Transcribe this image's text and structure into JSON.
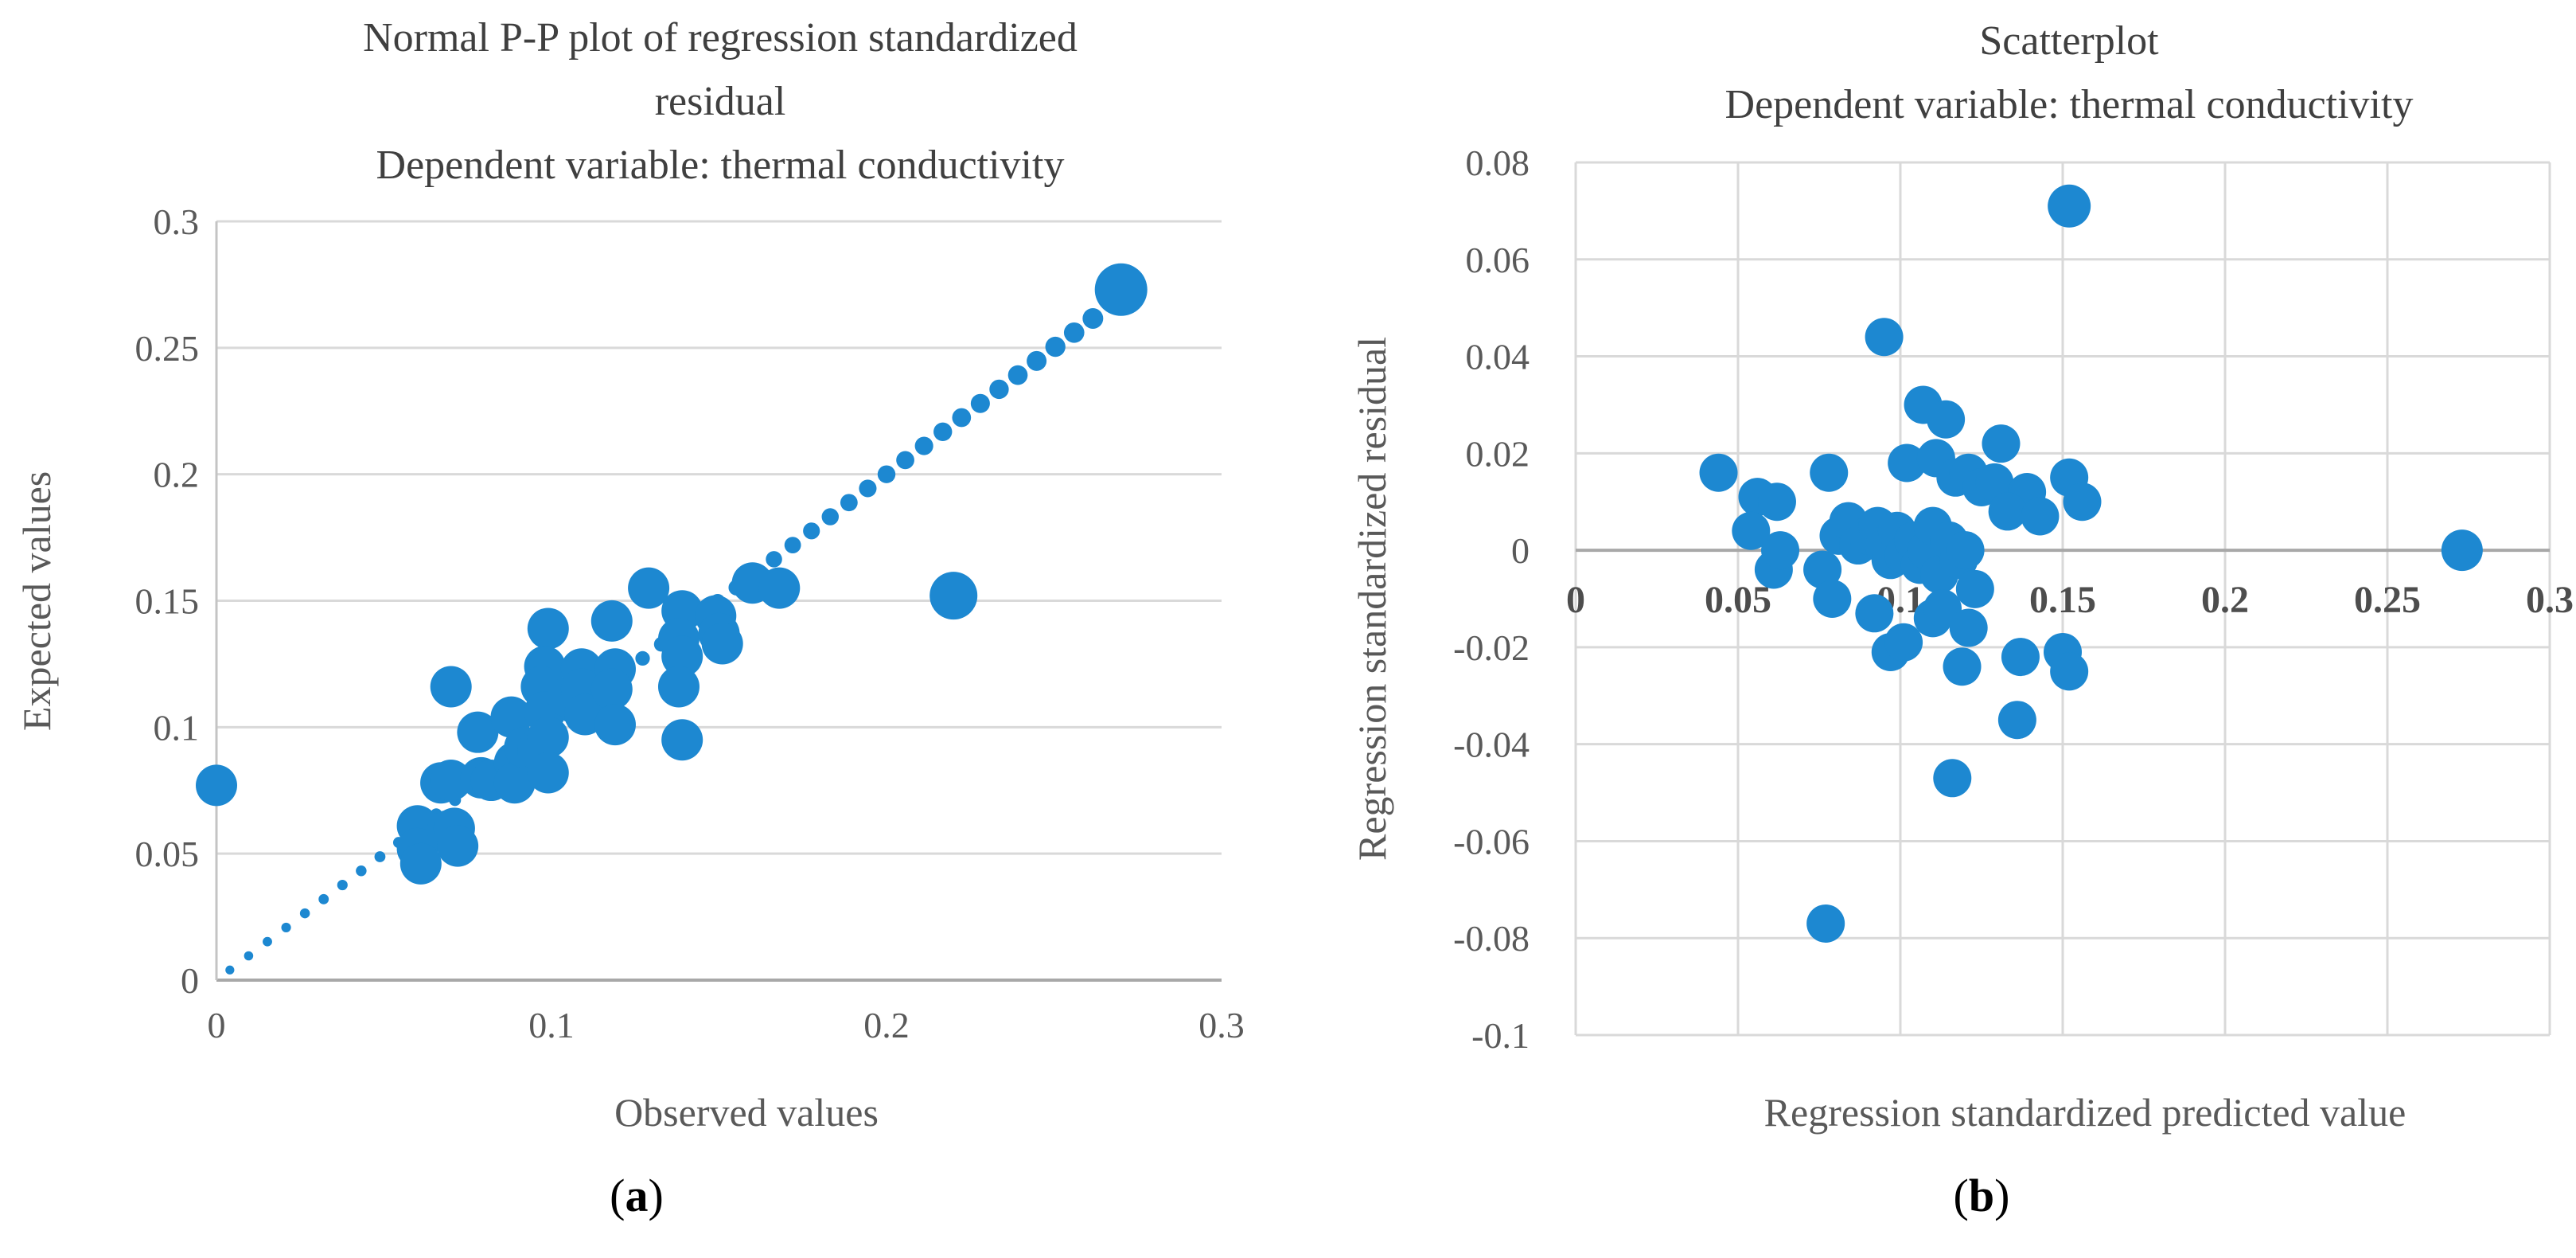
{
  "colors": {
    "marker_blue": "#1d88d1",
    "gridline": "#d9d9d9",
    "axis_dark": "#a8a8a8",
    "axis_light": "#c4c4c4",
    "tick_text": "#595959",
    "tick_text_bold": "#4d4d4d",
    "title_text": "#3f3f3f",
    "caption_text": "#000000"
  },
  "chart_data": [
    {
      "type": "scatter",
      "id": "a",
      "title": "Normal P-P plot of regression standardized residual",
      "title_lines": [
        "Normal P-P plot of regression standardized",
        "residual"
      ],
      "subtitle": "Dependent variable: thermal conductivity",
      "xlabel": "Observed values",
      "ylabel": "Expected values",
      "caption_open": "(",
      "caption_letter": "a",
      "caption_close": ")",
      "xlim": [
        0,
        0.3
      ],
      "ylim": [
        0,
        0.3
      ],
      "x_tick_labels": [
        "0",
        "0.1",
        "0.2",
        "0.3"
      ],
      "y_tick_labels": [
        "0.3",
        "0.25",
        "0.2",
        "0.15",
        "0.1",
        "0.05",
        "0"
      ],
      "grid": "horizontal",
      "legend": "none",
      "marker_radius": 26,
      "reference_line": {
        "style": "dotted",
        "from": [
          0,
          0
        ],
        "to": [
          0.2625,
          0.2625
        ],
        "step": 0.0056
      },
      "points": [
        [
          0.0,
          0.077
        ],
        [
          0.06,
          0.061
        ],
        [
          0.06,
          0.052
        ],
        [
          0.061,
          0.046
        ],
        [
          0.067,
          0.078
        ],
        [
          0.069,
          0.059
        ],
        [
          0.071,
          0.06
        ],
        [
          0.072,
          0.053
        ],
        [
          0.07,
          0.079
        ],
        [
          0.07,
          0.116
        ],
        [
          0.078,
          0.098
        ],
        [
          0.079,
          0.08
        ],
        [
          0.082,
          0.079
        ],
        [
          0.088,
          0.104
        ],
        [
          0.089,
          0.086
        ],
        [
          0.089,
          0.078
        ],
        [
          0.092,
          0.092
        ],
        [
          0.096,
          0.091
        ],
        [
          0.099,
          0.139
        ],
        [
          0.098,
          0.124
        ],
        [
          0.097,
          0.116
        ],
        [
          0.098,
          0.106
        ],
        [
          0.099,
          0.096
        ],
        [
          0.099,
          0.082
        ],
        [
          0.105,
          0.112
        ],
        [
          0.109,
          0.123
        ],
        [
          0.109,
          0.115
        ],
        [
          0.11,
          0.105
        ],
        [
          0.118,
          0.142
        ],
        [
          0.119,
          0.123
        ],
        [
          0.118,
          0.115
        ],
        [
          0.119,
          0.101
        ],
        [
          0.129,
          0.155
        ],
        [
          0.139,
          0.146
        ],
        [
          0.138,
          0.135
        ],
        [
          0.139,
          0.128
        ],
        [
          0.138,
          0.116
        ],
        [
          0.139,
          0.095
        ],
        [
          0.149,
          0.144
        ],
        [
          0.15,
          0.137
        ],
        [
          0.151,
          0.133
        ],
        [
          0.16,
          0.157
        ],
        [
          0.168,
          0.155
        ],
        [
          0.22,
          0.152,
          30
        ],
        [
          0.27,
          0.273,
          33
        ]
      ]
    },
    {
      "type": "scatter",
      "id": "b",
      "title": "Scatterplot",
      "title_lines": [
        "Scatterplot"
      ],
      "subtitle": "Dependent variable: thermal conductivity",
      "xlabel": "Regression standardized predicted value",
      "ylabel": "Regression standardized residual",
      "caption_open": "(",
      "caption_letter": "b",
      "caption_close": ")",
      "xlim": [
        0,
        0.3
      ],
      "ylim": [
        -0.1,
        0.08
      ],
      "x_tick_labels": [
        "0",
        "0.05",
        "0.1",
        "0.15",
        "0.2",
        "0.25",
        "0.3"
      ],
      "y_tick_labels": [
        "0.08",
        "0.06",
        "0.04",
        "0.02",
        "0",
        "-0.02",
        "-0.04",
        "-0.06",
        "-0.08",
        "-0.1"
      ],
      "grid": "both",
      "legend": "none",
      "x_tick_position": "inside, next to zero axis",
      "zero_line": true,
      "marker_radius": 24,
      "points": [
        [
          0.152,
          0.071,
          27
        ],
        [
          0.095,
          0.044
        ],
        [
          0.107,
          0.03
        ],
        [
          0.114,
          0.027
        ],
        [
          0.131,
          0.022
        ],
        [
          0.044,
          0.016
        ],
        [
          0.078,
          0.016
        ],
        [
          0.102,
          0.018
        ],
        [
          0.111,
          0.019
        ],
        [
          0.117,
          0.015
        ],
        [
          0.121,
          0.016
        ],
        [
          0.125,
          0.013
        ],
        [
          0.129,
          0.014
        ],
        [
          0.139,
          0.012
        ],
        [
          0.152,
          0.015
        ],
        [
          0.156,
          0.01
        ],
        [
          0.056,
          0.011
        ],
        [
          0.062,
          0.01
        ],
        [
          0.133,
          0.008
        ],
        [
          0.143,
          0.007
        ],
        [
          0.054,
          0.004
        ],
        [
          0.061,
          -0.004
        ],
        [
          0.063,
          0.0
        ],
        [
          0.076,
          -0.004
        ],
        [
          0.079,
          -0.01
        ],
        [
          0.081,
          0.003
        ],
        [
          0.084,
          0.006
        ],
        [
          0.087,
          0.001
        ],
        [
          0.09,
          0.003
        ],
        [
          0.093,
          0.005
        ],
        [
          0.095,
          0.001
        ],
        [
          0.097,
          -0.002
        ],
        [
          0.099,
          0.004
        ],
        [
          0.101,
          -0.001
        ],
        [
          0.104,
          0.002
        ],
        [
          0.106,
          -0.003
        ],
        [
          0.108,
          0.0
        ],
        [
          0.11,
          0.005
        ],
        [
          0.112,
          -0.005
        ],
        [
          0.115,
          0.002
        ],
        [
          0.118,
          -0.002
        ],
        [
          0.12,
          0.0
        ],
        [
          0.123,
          -0.008
        ],
        [
          0.092,
          -0.013
        ],
        [
          0.097,
          -0.021
        ],
        [
          0.101,
          -0.019
        ],
        [
          0.11,
          -0.014
        ],
        [
          0.113,
          -0.012
        ],
        [
          0.121,
          -0.016
        ],
        [
          0.119,
          -0.024
        ],
        [
          0.137,
          -0.022
        ],
        [
          0.15,
          -0.021
        ],
        [
          0.152,
          -0.025
        ],
        [
          0.136,
          -0.035
        ],
        [
          0.116,
          -0.047
        ],
        [
          0.077,
          -0.077
        ],
        [
          0.273,
          0.0,
          26
        ]
      ]
    }
  ]
}
